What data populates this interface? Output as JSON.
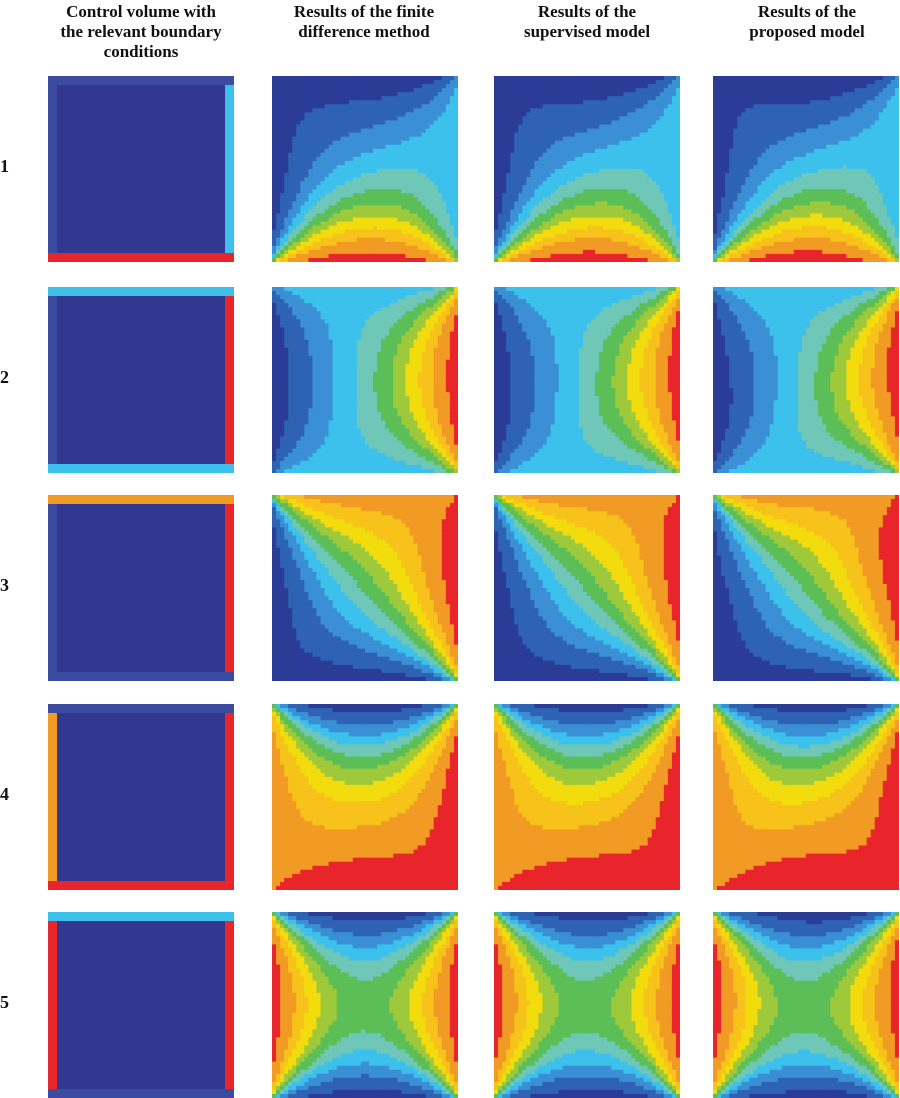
{
  "headers": [
    "Control volume with\nthe relevant boundary\nconditions",
    "Results of the finite\ndifference method",
    "Results of the\nsupervised model",
    "Results of the\nproposed model"
  ],
  "row_labels": [
    "1",
    "2",
    "3",
    "4",
    "5"
  ],
  "colors": {
    "interior": "#32388f",
    "frame": "#3b4ba0",
    "dark_blue": "#2a3c95",
    "blue": "#2e62b3",
    "mid_blue": "#3a8fd5",
    "cyan": "#3cc0ec",
    "teal": "#6fc7b8",
    "green": "#5cbe56",
    "lime": "#9ec93a",
    "yellow": "#f2dc0e",
    "orange": "#f19a24",
    "red": "#e8252a"
  },
  "rows": [
    {
      "boundary": {
        "top": "frame",
        "bottom": "red",
        "left": "frame",
        "right": "cyan"
      },
      "field": {
        "top": "dark_blue",
        "bottom": "red",
        "left": "dark_blue",
        "right": "cyan"
      }
    },
    {
      "boundary": {
        "top": "cyan",
        "bottom": "cyan",
        "left": "frame",
        "right": "red"
      },
      "field": {
        "top": "cyan",
        "bottom": "cyan",
        "left": "dark_blue",
        "right": "red"
      }
    },
    {
      "boundary": {
        "top": "orange",
        "bottom": "frame",
        "left": "frame",
        "right": "red"
      },
      "field": {
        "top": "orange",
        "bottom": "dark_blue",
        "left": "dark_blue",
        "right": "red"
      }
    },
    {
      "boundary": {
        "top": "frame",
        "bottom": "red",
        "left": "orange",
        "right": "red"
      },
      "field": {
        "top": "dark_blue",
        "bottom": "red",
        "left": "orange",
        "right": "red"
      }
    },
    {
      "boundary": {
        "top": "cyan",
        "bottom": "frame",
        "left": "red",
        "right": "red"
      },
      "field": {
        "top": "dark_blue",
        "bottom": "dark_blue",
        "left": "red",
        "right": "red"
      }
    }
  ]
}
